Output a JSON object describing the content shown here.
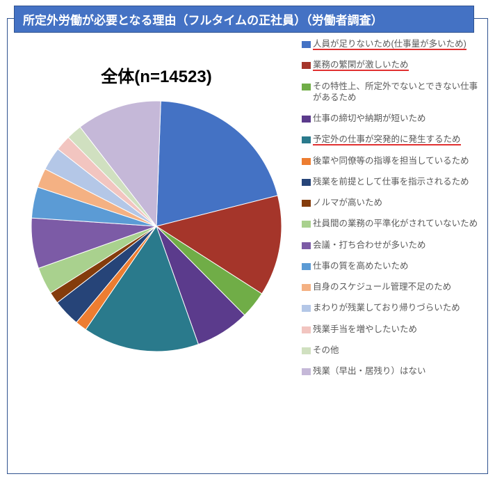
{
  "title": "所定外労働が必要となる理由（フルタイムの正社員）（労働者調査）",
  "chart": {
    "type": "pie",
    "title": "全体(n=14523)",
    "background_color": "#ffffff",
    "border_color": "#2f528f",
    "title_bar_bg": "#4472c4",
    "title_color": "#ffffff",
    "title_fontsize": 17,
    "chart_title_fontsize": 24,
    "legend_fontsize": 12.5,
    "legend_color": "#595959",
    "underline_color": "#e03030",
    "start_angle_deg": -88,
    "slices": [
      {
        "label": "人員が足りないため(仕事量が多いため)",
        "value": 20.5,
        "color": "#4472c4",
        "underline": true
      },
      {
        "label": "業務の繁閑が激しいため",
        "value": 13.0,
        "color": "#a5352a",
        "underline": true
      },
      {
        "label": "その特性上、所定外でないとできない仕事があるため",
        "value": 3.5,
        "color": "#70ad47"
      },
      {
        "label": "仕事の締切や納期が短いため",
        "value": 7.0,
        "color": "#5b3b8c"
      },
      {
        "label": "予定外の仕事が突発的に発生するため",
        "value": 15.0,
        "color": "#2a7a8c",
        "underline": true
      },
      {
        "label": "後輩や同僚等の指導を担当しているため",
        "value": 1.5,
        "color": "#ed7d31"
      },
      {
        "label": "残業を前提として仕事を指示されるため",
        "value": 3.5,
        "color": "#264478"
      },
      {
        "label": "ノルマが高いため",
        "value": 1.5,
        "color": "#843c0c"
      },
      {
        "label": "社員間の業務の平準化がされていないため",
        "value": 3.5,
        "color": "#a9d18e"
      },
      {
        "label": "会議・打ち合わせが多いため",
        "value": 6.5,
        "color": "#7c5ba6"
      },
      {
        "label": "仕事の質を高めたいため",
        "value": 4.0,
        "color": "#5b9bd5"
      },
      {
        "label": "自身のスケジュール管理不足のため",
        "value": 2.5,
        "color": "#f4b183"
      },
      {
        "label": "まわりが残業しており帰りづらいため",
        "value": 3.0,
        "color": "#b4c7e7"
      },
      {
        "label": "残業手当を増やしたいため",
        "value": 2.0,
        "color": "#f2c5c0"
      },
      {
        "label": "その他",
        "value": 2.0,
        "color": "#d0e0c0"
      },
      {
        "label": "残業（早出・居残り）はない",
        "value": 11.0,
        "color": "#c5b8d8"
      }
    ]
  }
}
